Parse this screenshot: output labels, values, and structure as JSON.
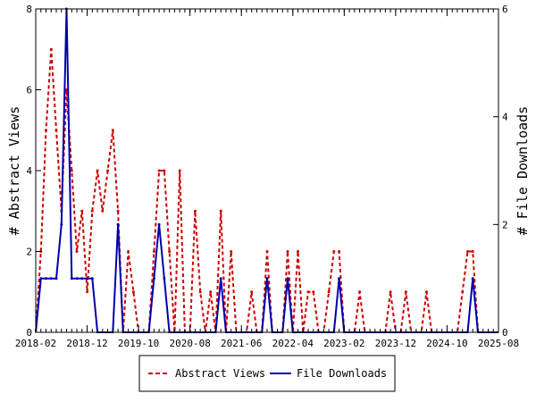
{
  "chart_data": {
    "type": "line",
    "title": "",
    "xlabel": "",
    "ylabel_left": "# Abstract Views",
    "ylabel_right": "# File Downloads",
    "xlim": [
      "2018-02",
      "2025-08"
    ],
    "ylim_left": [
      0,
      8
    ],
    "ylim_right": [
      0,
      6
    ],
    "x_ticks": [
      "2018-02",
      "2018-12",
      "2019-10",
      "2020-08",
      "2021-06",
      "2022-04",
      "2023-02",
      "2023-12",
      "2024-10",
      "2025-08"
    ],
    "y_ticks_left": [
      "0",
      "2",
      "4",
      "6",
      "8"
    ],
    "y_ticks_right": [
      "0",
      "2",
      "4",
      "6"
    ],
    "grid": false,
    "legend_position": "bottom",
    "series": [
      {
        "name": "Abstract Views",
        "axis": "left",
        "color": "#cc0000",
        "style": "dashed",
        "points": [
          [
            "2018-02",
            0
          ],
          [
            "2018-03",
            2
          ],
          [
            "2018-04",
            5
          ],
          [
            "2018-05",
            7
          ],
          [
            "2018-06",
            5
          ],
          [
            "2018-07",
            3
          ],
          [
            "2018-08",
            6
          ],
          [
            "2018-09",
            4
          ],
          [
            "2018-10",
            2
          ],
          [
            "2018-11",
            3
          ],
          [
            "2018-12",
            1
          ],
          [
            "2019-01",
            3
          ],
          [
            "2019-02",
            4
          ],
          [
            "2019-03",
            3
          ],
          [
            "2019-04",
            4
          ],
          [
            "2019-05",
            5
          ],
          [
            "2019-06",
            3
          ],
          [
            "2019-07",
            0
          ],
          [
            "2019-08",
            2
          ],
          [
            "2019-09",
            1
          ],
          [
            "2019-10",
            0
          ],
          [
            "2019-11",
            0
          ],
          [
            "2019-12",
            0
          ],
          [
            "2020-01",
            2
          ],
          [
            "2020-02",
            4
          ],
          [
            "2020-03",
            4
          ],
          [
            "2020-04",
            2
          ],
          [
            "2020-05",
            0
          ],
          [
            "2020-06",
            4
          ],
          [
            "2020-07",
            0
          ],
          [
            "2020-08",
            0
          ],
          [
            "2020-09",
            3
          ],
          [
            "2020-10",
            1
          ],
          [
            "2020-11",
            0
          ],
          [
            "2020-12",
            1
          ],
          [
            "2021-01",
            0
          ],
          [
            "2021-02",
            3
          ],
          [
            "2021-03",
            0
          ],
          [
            "2021-04",
            2
          ],
          [
            "2021-05",
            0
          ],
          [
            "2021-06",
            0
          ],
          [
            "2021-07",
            0
          ],
          [
            "2021-08",
            1
          ],
          [
            "2021-09",
            0
          ],
          [
            "2021-10",
            0
          ],
          [
            "2021-11",
            2
          ],
          [
            "2021-12",
            0
          ],
          [
            "2022-01",
            0
          ],
          [
            "2022-02",
            0
          ],
          [
            "2022-03",
            2
          ],
          [
            "2022-04",
            0
          ],
          [
            "2022-05",
            2
          ],
          [
            "2022-06",
            0
          ],
          [
            "2022-07",
            1
          ],
          [
            "2022-08",
            1
          ],
          [
            "2022-09",
            0
          ],
          [
            "2022-10",
            0
          ],
          [
            "2022-11",
            1
          ],
          [
            "2022-12",
            2
          ],
          [
            "2023-01",
            2
          ],
          [
            "2023-02",
            0
          ],
          [
            "2023-03",
            0
          ],
          [
            "2023-04",
            0
          ],
          [
            "2023-05",
            1
          ],
          [
            "2023-06",
            0
          ],
          [
            "2023-07",
            0
          ],
          [
            "2023-08",
            0
          ],
          [
            "2023-09",
            0
          ],
          [
            "2023-10",
            0
          ],
          [
            "2023-11",
            1
          ],
          [
            "2023-12",
            0
          ],
          [
            "2024-01",
            0
          ],
          [
            "2024-02",
            1
          ],
          [
            "2024-03",
            0
          ],
          [
            "2024-04",
            0
          ],
          [
            "2024-05",
            0
          ],
          [
            "2024-06",
            1
          ],
          [
            "2024-07",
            0
          ],
          [
            "2024-08",
            0
          ],
          [
            "2024-09",
            0
          ],
          [
            "2024-10",
            0
          ],
          [
            "2024-11",
            0
          ],
          [
            "2024-12",
            0
          ],
          [
            "2025-01",
            1
          ],
          [
            "2025-02",
            2
          ],
          [
            "2025-03",
            2
          ],
          [
            "2025-04",
            0
          ],
          [
            "2025-05",
            0
          ],
          [
            "2025-06",
            0
          ],
          [
            "2025-07",
            0
          ],
          [
            "2025-08",
            0
          ]
        ]
      },
      {
        "name": "File Downloads",
        "axis": "right",
        "color": "#0000aa",
        "style": "solid",
        "points": [
          [
            "2018-02",
            0
          ],
          [
            "2018-03",
            1
          ],
          [
            "2018-04",
            1
          ],
          [
            "2018-05",
            1
          ],
          [
            "2018-06",
            1
          ],
          [
            "2018-07",
            2
          ],
          [
            "2018-08",
            6
          ],
          [
            "2018-09",
            1
          ],
          [
            "2018-10",
            1
          ],
          [
            "2018-11",
            1
          ],
          [
            "2018-12",
            1
          ],
          [
            "2019-01",
            1
          ],
          [
            "2019-02",
            0
          ],
          [
            "2019-03",
            0
          ],
          [
            "2019-04",
            0
          ],
          [
            "2019-05",
            0
          ],
          [
            "2019-06",
            2
          ],
          [
            "2019-07",
            0
          ],
          [
            "2019-08",
            0
          ],
          [
            "2019-09",
            0
          ],
          [
            "2019-10",
            0
          ],
          [
            "2019-11",
            0
          ],
          [
            "2019-12",
            0
          ],
          [
            "2020-01",
            1
          ],
          [
            "2020-02",
            2
          ],
          [
            "2020-03",
            1
          ],
          [
            "2020-04",
            0
          ],
          [
            "2020-05",
            0
          ],
          [
            "2020-06",
            0
          ],
          [
            "2020-07",
            0
          ],
          [
            "2020-08",
            0
          ],
          [
            "2020-09",
            0
          ],
          [
            "2020-10",
            0
          ],
          [
            "2020-11",
            0
          ],
          [
            "2020-12",
            0
          ],
          [
            "2021-01",
            0
          ],
          [
            "2021-02",
            1
          ],
          [
            "2021-03",
            0
          ],
          [
            "2021-04",
            0
          ],
          [
            "2021-05",
            0
          ],
          [
            "2021-06",
            0
          ],
          [
            "2021-07",
            0
          ],
          [
            "2021-08",
            0
          ],
          [
            "2021-09",
            0
          ],
          [
            "2021-10",
            0
          ],
          [
            "2021-11",
            1
          ],
          [
            "2021-12",
            0
          ],
          [
            "2022-01",
            0
          ],
          [
            "2022-02",
            0
          ],
          [
            "2022-03",
            1
          ],
          [
            "2022-04",
            0
          ],
          [
            "2022-05",
            0
          ],
          [
            "2022-06",
            0
          ],
          [
            "2022-07",
            0
          ],
          [
            "2022-08",
            0
          ],
          [
            "2022-09",
            0
          ],
          [
            "2022-10",
            0
          ],
          [
            "2022-11",
            0
          ],
          [
            "2022-12",
            0
          ],
          [
            "2023-01",
            1
          ],
          [
            "2023-02",
            0
          ],
          [
            "2023-03",
            0
          ],
          [
            "2023-04",
            0
          ],
          [
            "2023-05",
            0
          ],
          [
            "2023-06",
            0
          ],
          [
            "2023-07",
            0
          ],
          [
            "2023-08",
            0
          ],
          [
            "2023-09",
            0
          ],
          [
            "2023-10",
            0
          ],
          [
            "2023-11",
            0
          ],
          [
            "2023-12",
            0
          ],
          [
            "2024-01",
            0
          ],
          [
            "2024-02",
            0
          ],
          [
            "2024-03",
            0
          ],
          [
            "2024-04",
            0
          ],
          [
            "2024-05",
            0
          ],
          [
            "2024-06",
            0
          ],
          [
            "2024-07",
            0
          ],
          [
            "2024-08",
            0
          ],
          [
            "2024-09",
            0
          ],
          [
            "2024-10",
            0
          ],
          [
            "2024-11",
            0
          ],
          [
            "2024-12",
            0
          ],
          [
            "2025-01",
            0
          ],
          [
            "2025-02",
            0
          ],
          [
            "2025-03",
            1
          ],
          [
            "2025-04",
            0
          ],
          [
            "2025-05",
            0
          ],
          [
            "2025-06",
            0
          ],
          [
            "2025-07",
            0
          ],
          [
            "2025-08",
            0
          ]
        ]
      }
    ]
  }
}
